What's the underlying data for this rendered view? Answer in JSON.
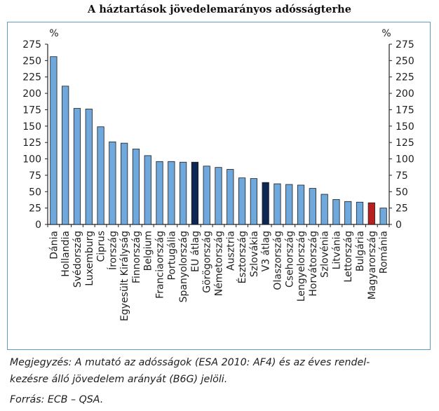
{
  "chart_data": {
    "type": "bar",
    "title": "A háztartások jövedelemarányos adósságterhe",
    "ylabel": "%",
    "ylim": [
      0,
      275
    ],
    "yticks": [
      0,
      25,
      50,
      75,
      100,
      125,
      150,
      175,
      200,
      225,
      250,
      275
    ],
    "grid": false,
    "categories": [
      "Dánia",
      "Hollandia",
      "Svédország",
      "Luxemburg",
      "Ciprus",
      "Írország",
      "Egyesült Királyság",
      "Finnország",
      "Belgium",
      "Franciaország",
      "Portugália",
      "Spanyolország",
      "EU átlag",
      "Görögország",
      "Németország",
      "Ausztria",
      "Észtország",
      "Szlovákia",
      "V3 átlag",
      "Olaszország",
      "Csehország",
      "Lengyelország",
      "Horvátország",
      "Szlovénia",
      "Litvánia",
      "Lettország",
      "Bulgária",
      "Magyarország",
      "Románia"
    ],
    "values": [
      256,
      211,
      177,
      176,
      149,
      126,
      124,
      115,
      105,
      96,
      96,
      95,
      95,
      89,
      87,
      84,
      71,
      70,
      64,
      62,
      61,
      60,
      55,
      46,
      38,
      35,
      34,
      33,
      25
    ],
    "colors": {
      "default": "#6fa8dc",
      "average": "#0d2652",
      "highlight": "#b82020"
    },
    "bar_colors": [
      "default",
      "default",
      "default",
      "default",
      "default",
      "default",
      "default",
      "default",
      "default",
      "default",
      "default",
      "default",
      "average",
      "default",
      "default",
      "default",
      "default",
      "default",
      "average",
      "default",
      "default",
      "default",
      "default",
      "default",
      "default",
      "default",
      "default",
      "highlight",
      "default"
    ]
  },
  "notes": {
    "line1": "Megjegyzés: A mutató az adósságok (ESA 2010: AF4) és az éves rendel-",
    "line2": "kezésre álló jövedelem arányát (B6G) jelöli.",
    "source": "Forrás: ECB – QSA."
  }
}
